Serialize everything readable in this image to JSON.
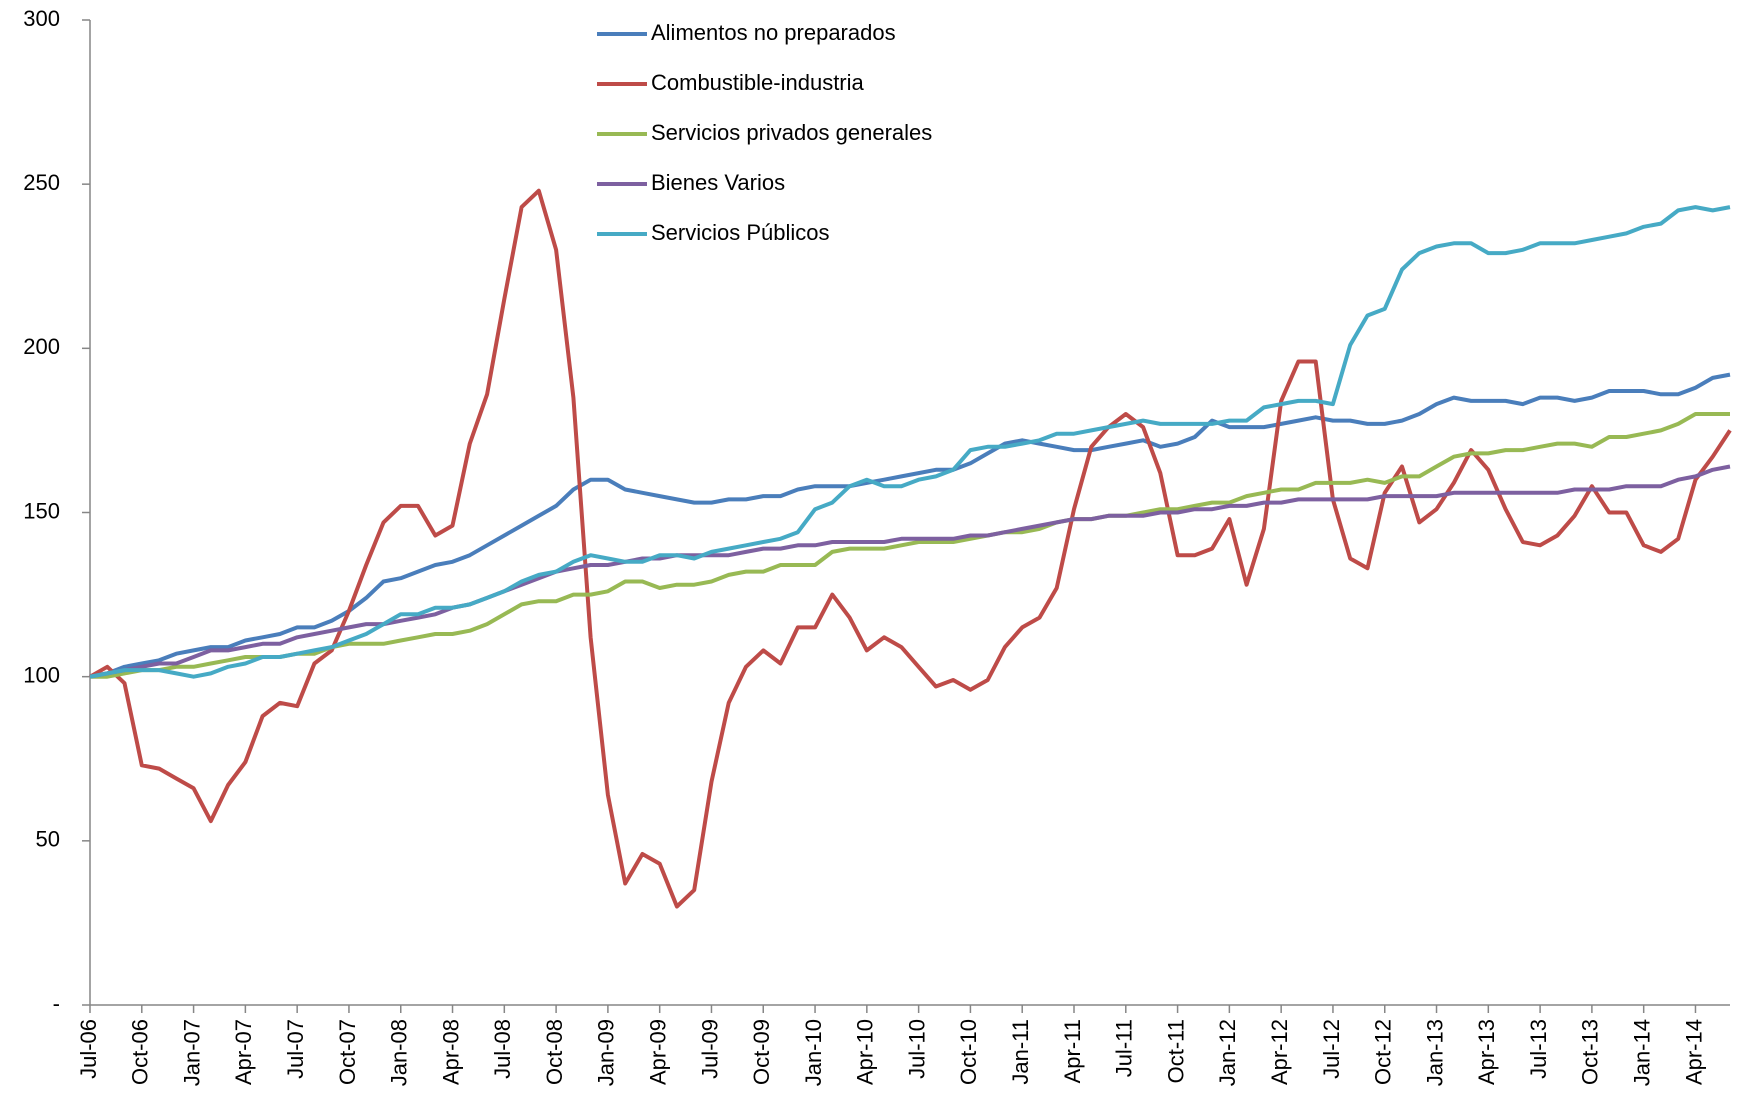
{
  "chart_data": {
    "type": "line",
    "categories": [
      "Jul-06",
      null,
      null,
      "Oct-06",
      null,
      null,
      "Jan-07",
      null,
      null,
      "Apr-07",
      null,
      null,
      "Jul-07",
      null,
      null,
      "Oct-07",
      null,
      null,
      "Jan-08",
      null,
      null,
      "Apr-08",
      null,
      null,
      "Jul-08",
      null,
      null,
      "Oct-08",
      null,
      null,
      "Jan-09",
      null,
      null,
      "Apr-09",
      null,
      null,
      "Jul-09",
      null,
      null,
      "Oct-09",
      null,
      null,
      "Jan-10",
      null,
      null,
      "Apr-10",
      null,
      null,
      "Jul-10",
      null,
      null,
      "Oct-10",
      null,
      null,
      "Jan-11",
      null,
      null,
      "Apr-11",
      null,
      null,
      "Jul-11",
      null,
      null,
      "Oct-11",
      null,
      null,
      "Jan-12",
      null,
      null,
      "Apr-12",
      null,
      null,
      "Jul-12",
      null,
      null,
      "Oct-12",
      null,
      null,
      "Jan-13",
      null,
      null,
      "Apr-13",
      null,
      null,
      "Jul-13",
      null,
      null,
      "Oct-13",
      null,
      null,
      "Jan-14",
      null,
      null,
      "Apr-14",
      null,
      null
    ],
    "series": [
      {
        "name": "Alimentos no  preparados",
        "color": "#4a7ebb",
        "values": [
          100,
          101,
          103,
          104,
          105,
          107,
          108,
          109,
          109,
          111,
          112,
          113,
          115,
          115,
          117,
          120,
          124,
          129,
          130,
          132,
          134,
          135,
          137,
          140,
          143,
          146,
          149,
          152,
          157,
          160,
          160,
          157,
          156,
          155,
          154,
          153,
          153,
          154,
          154,
          155,
          155,
          157,
          158,
          158,
          158,
          159,
          160,
          161,
          162,
          163,
          163,
          165,
          168,
          171,
          172,
          171,
          170,
          169,
          169,
          170,
          171,
          172,
          170,
          171,
          173,
          178,
          176,
          176,
          176,
          177,
          178,
          179,
          178,
          178,
          177,
          177,
          178,
          180,
          183,
          185,
          184,
          184,
          184,
          183,
          185,
          185,
          184,
          185,
          187,
          187,
          187,
          186,
          186,
          188,
          191,
          192
        ]
      },
      {
        "name": "Combustible-industria",
        "color": "#be4b48",
        "values": [
          100,
          103,
          98,
          73,
          72,
          69,
          66,
          56,
          67,
          74,
          88,
          92,
          91,
          104,
          108,
          120,
          134,
          147,
          152,
          152,
          143,
          146,
          171,
          186,
          215,
          243,
          248,
          230,
          185,
          112,
          64,
          37,
          46,
          43,
          30,
          35,
          68,
          92,
          103,
          108,
          104,
          115,
          115,
          125,
          118,
          108,
          112,
          109,
          103,
          97,
          99,
          96,
          99,
          109,
          115,
          118,
          127,
          151,
          170,
          176,
          180,
          176,
          162,
          137,
          137,
          139,
          148,
          128,
          145,
          184,
          196,
          196,
          154,
          136,
          133,
          156,
          164,
          147,
          151,
          159,
          169,
          163,
          151,
          141,
          140,
          143,
          149,
          158,
          150,
          150,
          140,
          138,
          142,
          160,
          167,
          175
        ]
      },
      {
        "name": "Servicios privados generales",
        "color": "#98b954",
        "values": [
          100,
          100,
          101,
          102,
          102,
          103,
          103,
          104,
          105,
          106,
          106,
          106,
          107,
          107,
          109,
          110,
          110,
          110,
          111,
          112,
          113,
          113,
          114,
          116,
          119,
          122,
          123,
          123,
          125,
          125,
          126,
          129,
          129,
          127,
          128,
          128,
          129,
          131,
          132,
          132,
          134,
          134,
          134,
          138,
          139,
          139,
          139,
          140,
          141,
          141,
          141,
          142,
          143,
          144,
          144,
          145,
          147,
          148,
          148,
          149,
          149,
          150,
          151,
          151,
          152,
          153,
          153,
          155,
          156,
          157,
          157,
          159,
          159,
          159,
          160,
          159,
          161,
          161,
          164,
          167,
          168,
          168,
          169,
          169,
          170,
          171,
          171,
          170,
          173,
          173,
          174,
          175,
          177,
          180,
          180,
          180
        ]
      },
      {
        "name": "Bienes Varios",
        "color": "#7d60a0",
        "values": [
          100,
          101,
          102,
          103,
          104,
          104,
          106,
          108,
          108,
          109,
          110,
          110,
          112,
          113,
          114,
          115,
          116,
          116,
          117,
          118,
          119,
          121,
          122,
          124,
          126,
          128,
          130,
          132,
          133,
          134,
          134,
          135,
          136,
          136,
          137,
          137,
          137,
          137,
          138,
          139,
          139,
          140,
          140,
          141,
          141,
          141,
          141,
          142,
          142,
          142,
          142,
          143,
          143,
          144,
          145,
          146,
          147,
          148,
          148,
          149,
          149,
          149,
          150,
          150,
          151,
          151,
          152,
          152,
          153,
          153,
          154,
          154,
          154,
          154,
          154,
          155,
          155,
          155,
          155,
          156,
          156,
          156,
          156,
          156,
          156,
          156,
          157,
          157,
          157,
          158,
          158,
          158,
          160,
          161,
          163,
          164
        ]
      },
      {
        "name": "Servicios Públicos",
        "color": "#46aac5",
        "values": [
          100,
          101,
          102,
          102,
          102,
          101,
          100,
          101,
          103,
          104,
          106,
          106,
          107,
          108,
          109,
          111,
          113,
          116,
          119,
          119,
          121,
          121,
          122,
          124,
          126,
          129,
          131,
          132,
          135,
          137,
          136,
          135,
          135,
          137,
          137,
          136,
          138,
          139,
          140,
          141,
          142,
          144,
          151,
          153,
          158,
          160,
          158,
          158,
          160,
          161,
          163,
          169,
          170,
          170,
          171,
          172,
          174,
          174,
          175,
          176,
          177,
          178,
          177,
          177,
          177,
          177,
          178,
          178,
          182,
          183,
          184,
          184,
          183,
          201,
          210,
          212,
          224,
          229,
          231,
          232,
          232,
          229,
          229,
          230,
          232,
          232,
          232,
          233,
          234,
          235,
          237,
          238,
          242,
          243,
          242,
          243
        ]
      }
    ],
    "ylim": [
      0,
      300
    ],
    "yticks": [
      {
        "value": 0,
        "label": "-"
      },
      50,
      100,
      150,
      200,
      250,
      300
    ],
    "grid": false,
    "legend": "top"
  }
}
